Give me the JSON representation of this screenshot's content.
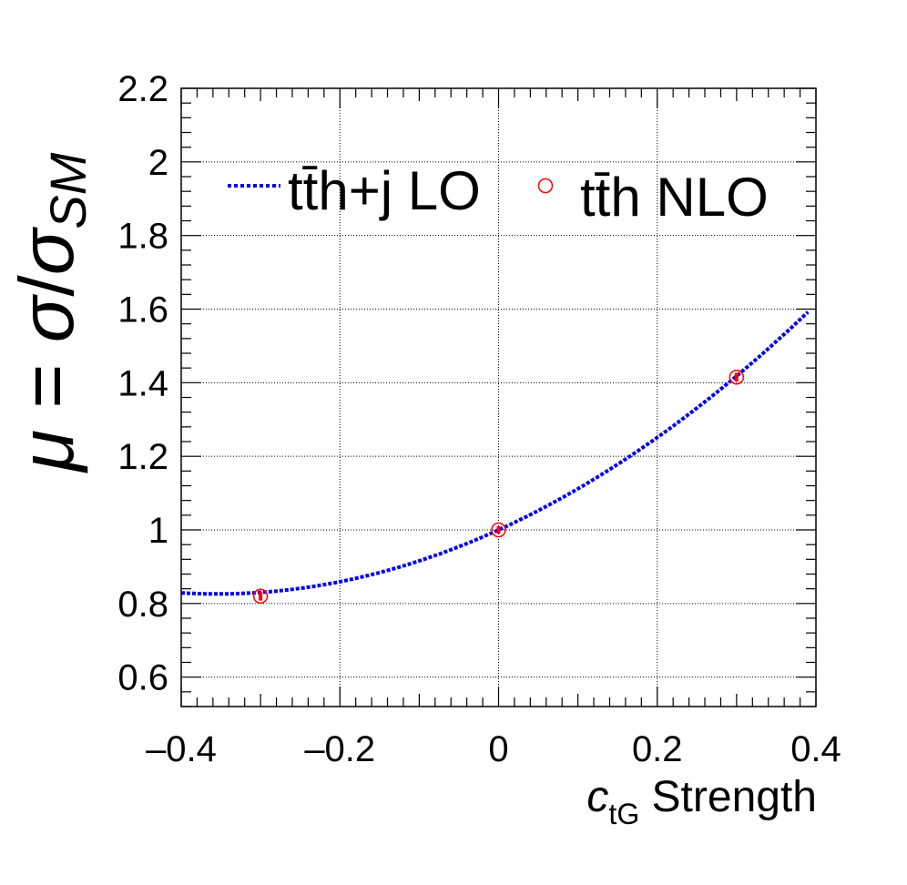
{
  "chart_data": {
    "type": "line",
    "xlabel": {
      "symbol": "c",
      "subscript": "tG",
      "rest": " Strength"
    },
    "ylabel": {
      "lhs": "μ",
      "eq": " = ",
      "num": "σ",
      "slash": "/",
      "den": "σ",
      "den_sub": "SM"
    },
    "xlim": [
      -0.4,
      0.4
    ],
    "ylim": [
      0.52,
      2.2
    ],
    "xticks": [
      -0.4,
      -0.2,
      0,
      0.2,
      0.4
    ],
    "xtick_labels": [
      "–0.4",
      "–0.2",
      "0",
      "0.2",
      "0.4"
    ],
    "yticks": [
      0.6,
      0.8,
      1.0,
      1.2,
      1.4,
      1.6,
      1.8,
      2.0,
      2.2
    ],
    "ytick_labels": [
      "0.6",
      "0.8",
      "1",
      "1.2",
      "1.4",
      "1.6",
      "1.8",
      "2",
      "2.2"
    ],
    "grid": true,
    "legend_position": "top",
    "series": [
      {
        "name": "tt̄h+j LO",
        "kind": "line",
        "style": "dotted",
        "color": "#0000ee",
        "model": {
          "form": "quadratic",
          "a": 1.0,
          "b": 0.98,
          "c": 1.38
        },
        "x": [
          -0.4,
          -0.35,
          -0.3,
          -0.25,
          -0.2,
          -0.15,
          -0.1,
          -0.05,
          0.0,
          0.05,
          0.1,
          0.15,
          0.2,
          0.25,
          0.3,
          0.35,
          0.39
        ],
        "y": [
          0.829,
          0.826,
          0.83,
          0.841,
          0.859,
          0.884,
          0.916,
          0.955,
          1.0,
          1.052,
          1.112,
          1.178,
          1.251,
          1.331,
          1.418,
          1.512,
          1.592
        ]
      },
      {
        "name": "tt̄h NLO",
        "kind": "markers",
        "color": "#ff0000",
        "x": [
          -0.3,
          0.0,
          0.3
        ],
        "y": [
          0.82,
          1.0,
          1.415
        ],
        "yerr": [
          0.012,
          0.01,
          0.012
        ]
      }
    ]
  }
}
